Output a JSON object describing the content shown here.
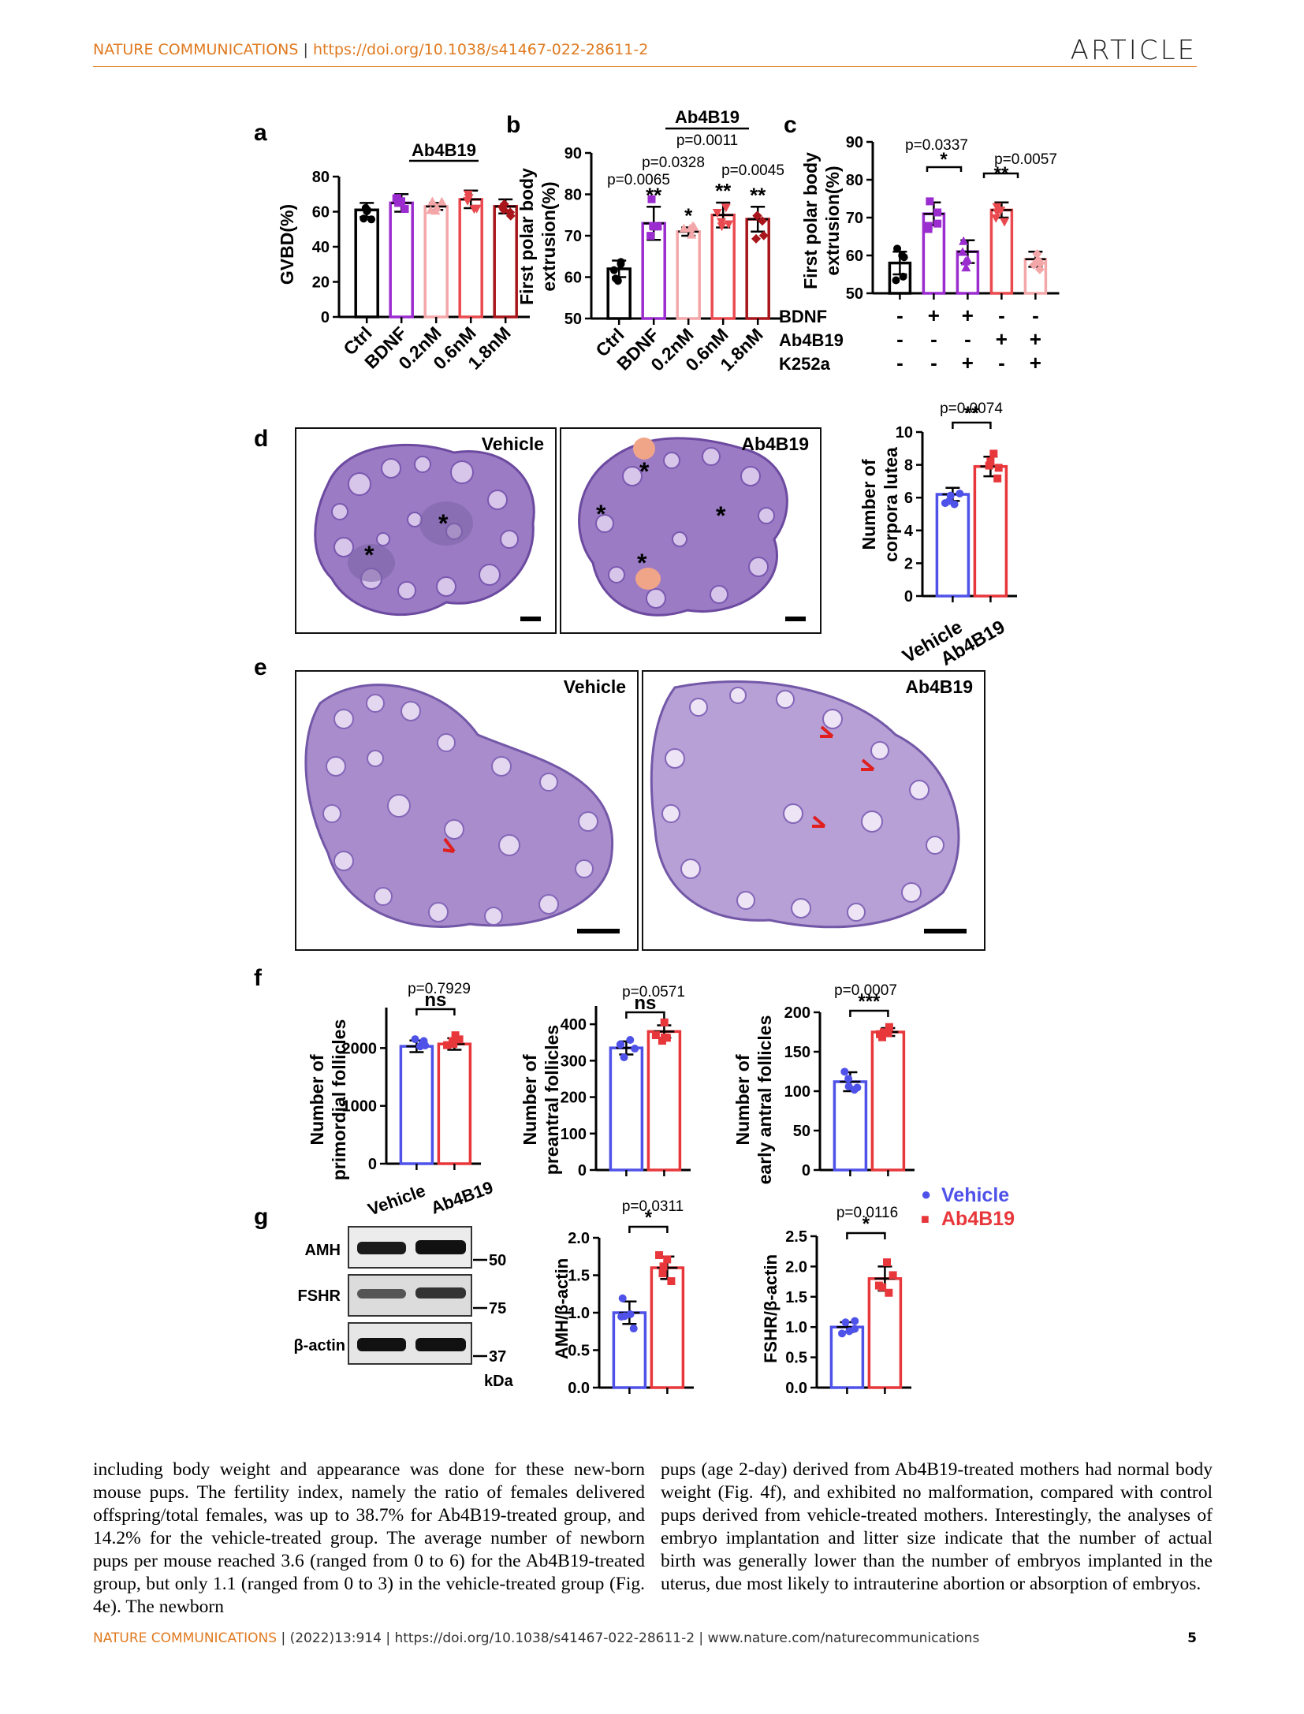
{
  "header": {
    "journal": "NATURE COMMUNICATIONS",
    "separator": "|",
    "doi_url": "https://doi.org/10.1038/s41467-022-28611-2",
    "article_label": "ARTICLE"
  },
  "colors": {
    "vehicle": "#4f52e8",
    "ab4b19": "#e8373b",
    "bdnf": "#9b2ccf",
    "low": "#f4a7a9",
    "mid": "#ea4a4f",
    "high": "#a8151a",
    "ctrl": "#000000",
    "accent": "#e07a20"
  },
  "panels": {
    "a": {
      "letter": "a",
      "ylabel": "GVBD(%)",
      "bracket_label": "Ab4B19"
    },
    "b": {
      "letter": "b",
      "ylabel1": "First polar body",
      "ylabel2": "extrusion(%)",
      "bracket_label": "Ab4B19",
      "p_values": [
        "p=0.0011",
        "p=0.0328",
        "p=0.0065",
        "p=0.0045"
      ]
    },
    "c": {
      "letter": "c",
      "ylabel1": "First polar body",
      "ylabel2": "extrusion(%)",
      "p_values": [
        "p=0.0337",
        "p=0.0057"
      ],
      "rows": [
        {
          "label": "BDNF",
          "signs": [
            "-",
            "+",
            "+",
            "-",
            "-"
          ]
        },
        {
          "label": "Ab4B19",
          "signs": [
            "-",
            "-",
            "-",
            "+",
            "+"
          ]
        },
        {
          "label": "K252a",
          "signs": [
            "-",
            "-",
            "+",
            "-",
            "+"
          ]
        }
      ]
    },
    "d": {
      "letter": "d",
      "image_labels": [
        "Vehicle",
        "Ab4B19"
      ],
      "ylabel1": "Number of",
      "ylabel2": "corpora lutea",
      "p_value": "p=0.0074",
      "sig": "**",
      "asterisk": "*"
    },
    "e": {
      "letter": "e",
      "image_labels": [
        "Vehicle",
        "Ab4B19"
      ]
    },
    "f": {
      "letter": "f",
      "charts": [
        {
          "ylabel1": "Number of",
          "ylabel2": "primordial follicles",
          "p_value": "p=0.7929",
          "sig": "ns"
        },
        {
          "ylabel1": "Number of",
          "ylabel2": "preantral follicles",
          "p_value": "p=0.0571",
          "sig": "ns"
        },
        {
          "ylabel1": "Number of",
          "ylabel2": "early antral follicles",
          "p_value": "p=0.0007",
          "sig": "***"
        }
      ],
      "legend": [
        {
          "marker": "●",
          "label": "Vehicle"
        },
        {
          "marker": "■",
          "label": "Ab4B19"
        }
      ]
    },
    "g": {
      "letter": "g",
      "lane_labels": [
        "Vehicle",
        "Ab4B19"
      ],
      "bands": [
        "AMH",
        "FSHR",
        "β-actin"
      ],
      "markers": [
        "50",
        "75",
        "37"
      ],
      "unit": "kDa",
      "charts": [
        {
          "ylabel": "AMH/β-actin",
          "p_value": "p=0.0311",
          "sig": "*"
        },
        {
          "ylabel": "FSHR/β-actin",
          "p_value": "p=0.0116",
          "sig": "*"
        }
      ]
    }
  },
  "chart_data": [
    {
      "panel": "a",
      "type": "bar",
      "categories": [
        "Ctrl",
        "BDNF",
        "0.2nM",
        "0.6nM",
        "1.8nM"
      ],
      "values": [
        61,
        65,
        63,
        67,
        63
      ],
      "errors": [
        4,
        5,
        2,
        5,
        4
      ],
      "ylabel": "GVBD(%)",
      "ylim": [
        0,
        80
      ],
      "yticks": [
        0,
        20,
        40,
        60,
        80
      ]
    },
    {
      "panel": "b",
      "type": "bar",
      "categories": [
        "Ctrl",
        "BDNF",
        "0.2nM",
        "0.6nM",
        "1.8nM"
      ],
      "values": [
        62,
        73,
        71,
        75,
        74
      ],
      "errors": [
        2,
        4,
        1,
        3,
        3
      ],
      "ylabel": "First polar body extrusion(%)",
      "ylim": [
        50,
        90
      ],
      "yticks": [
        50,
        60,
        70,
        80,
        90
      ],
      "sig": [
        "",
        "**",
        "*",
        "**",
        "**"
      ]
    },
    {
      "panel": "c",
      "type": "bar",
      "values": [
        58,
        71,
        61,
        72,
        59
      ],
      "errors": [
        3,
        3,
        3,
        2,
        2
      ],
      "ylabel": "First polar body extrusion(%)",
      "ylim": [
        50,
        90
      ],
      "yticks": [
        50,
        60,
        70,
        80,
        90
      ]
    },
    {
      "panel": "d",
      "type": "bar",
      "categories": [
        "Vehicle",
        "Ab4B19"
      ],
      "values": [
        6.2,
        7.9
      ],
      "errors": [
        0.4,
        0.6
      ],
      "ylabel": "Number of corpora lutea",
      "ylim": [
        0,
        10
      ],
      "yticks": [
        0,
        2,
        4,
        6,
        8,
        10
      ]
    },
    {
      "panel": "f1",
      "type": "bar",
      "categories": [
        "Vehicle",
        "Ab4B19"
      ],
      "values": [
        2030,
        2070
      ],
      "errors": [
        100,
        100
      ],
      "ylabel": "Number of primordial follicles",
      "ylim": [
        0,
        2700
      ],
      "yticks": [
        0,
        1000,
        2000
      ]
    },
    {
      "panel": "f2",
      "type": "bar",
      "categories": [
        "Vehicle",
        "Ab4B19"
      ],
      "values": [
        335,
        380
      ],
      "errors": [
        18,
        17
      ],
      "ylabel": "Number of preantral follicles",
      "ylim": [
        0,
        450
      ],
      "yticks": [
        0,
        100,
        200,
        300,
        400
      ]
    },
    {
      "panel": "f3",
      "type": "bar",
      "categories": [
        "Vehicle",
        "Ab4B19"
      ],
      "values": [
        112,
        175
      ],
      "errors": [
        12,
        5
      ],
      "ylabel": "Number of early antral follicles",
      "ylim": [
        0,
        200
      ],
      "yticks": [
        0,
        50,
        100,
        150,
        200
      ]
    },
    {
      "panel": "g1",
      "type": "bar",
      "categories": [
        "Vehicle",
        "Ab4B19"
      ],
      "values": [
        1.0,
        1.6
      ],
      "errors": [
        0.15,
        0.15
      ],
      "ylabel": "AMH/β-actin",
      "ylim": [
        0,
        2.0
      ],
      "yticks": [
        "0.0",
        "0.5",
        "1.0",
        "1.5",
        "2.0"
      ]
    },
    {
      "panel": "g2",
      "type": "bar",
      "categories": [
        "Vehicle",
        "Ab4B19"
      ],
      "values": [
        1.0,
        1.8
      ],
      "errors": [
        0.08,
        0.2
      ],
      "ylabel": "FSHR/β-actin",
      "ylim": [
        0,
        2.5
      ],
      "yticks": [
        "0.0",
        "0.5",
        "1.0",
        "1.5",
        "2.0",
        "2.5"
      ]
    }
  ],
  "body": {
    "col1": "including body weight and appearance was done for these new-born mouse pups. The fertility index, namely the ratio of females delivered offspring/total females, was up to 38.7% for Ab4B19-treated group, and 14.2% for the vehicle-treated group. The average number of newborn pups per mouse reached 3.6 (ranged from 0 to 6) for the Ab4B19-treated group, but only 1.1 (ranged from 0 to 3) in the vehicle-treated group (Fig. 4e). The newborn",
    "col2": "pups (age 2-day) derived from Ab4B19-treated mothers had normal body weight (Fig. 4f), and exhibited no malformation, compared with control pups derived from vehicle-treated mothers. Interestingly, the analyses of embryo implantation and litter size indicate that the number of actual birth was generally lower than the number of embryos implanted in the uterus, due most likely to intrauterine abortion or absorption of embryos."
  },
  "footer": {
    "journal": "NATURE COMMUNICATIONS",
    "citation": "| (2022)13:914 | https://doi.org/10.1038/s41467-022-28611-2 | www.nature.com/naturecommunications",
    "page": "5"
  }
}
